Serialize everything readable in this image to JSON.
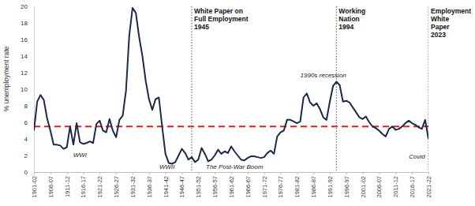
{
  "chart_data": {
    "type": "line",
    "y_label": "% unemployment rate",
    "color": "#1b2a47",
    "x": [
      1901,
      1902,
      1903,
      1904,
      1905,
      1906,
      1907,
      1908,
      1909,
      1910,
      1911,
      1912,
      1913,
      1914,
      1915,
      1916,
      1917,
      1918,
      1919,
      1920,
      1921,
      1922,
      1923,
      1924,
      1925,
      1926,
      1927,
      1928,
      1929,
      1930,
      1931,
      1932,
      1933,
      1934,
      1935,
      1936,
      1937,
      1938,
      1939,
      1940,
      1941,
      1942,
      1943,
      1944,
      1945,
      1946,
      1947,
      1948,
      1949,
      1950,
      1951,
      1952,
      1953,
      1954,
      1955,
      1956,
      1957,
      1958,
      1959,
      1960,
      1961,
      1962,
      1963,
      1964,
      1965,
      1966,
      1967,
      1968,
      1969,
      1970,
      1971,
      1972,
      1973,
      1974,
      1975,
      1976,
      1977,
      1978,
      1979,
      1980,
      1981,
      1982,
      1983,
      1984,
      1985,
      1986,
      1987,
      1988,
      1989,
      1990,
      1991,
      1992,
      1993,
      1994,
      1995,
      1996,
      1997,
      1998,
      1999,
      2000,
      2001,
      2002,
      2003,
      2004,
      2005,
      2006,
      2007,
      2008,
      2009,
      2010,
      2011,
      2012,
      2013,
      2014,
      2015,
      2016,
      2017,
      2018,
      2019,
      2020,
      2021
    ],
    "values": [
      5.0,
      8.5,
      9.3,
      8.7,
      6.5,
      5.0,
      3.3,
      3.3,
      3.2,
      2.8,
      3.0,
      5.5,
      3.3,
      5.9,
      3.6,
      3.4,
      3.5,
      3.7,
      3.5,
      5.8,
      6.2,
      5.0,
      4.8,
      6.4,
      5.0,
      4.2,
      6.3,
      6.8,
      9.8,
      16.5,
      19.8,
      19.2,
      16.3,
      14.0,
      11.0,
      8.8,
      7.5,
      8.8,
      9.0,
      5.5,
      2.2,
      1.1,
      1.0,
      1.2,
      2.0,
      2.8,
      2.3,
      1.5,
      1.8,
      1.2,
      1.5,
      2.9,
      2.2,
      1.3,
      1.5,
      2.0,
      2.7,
      2.2,
      2.5,
      2.3,
      3.1,
      2.5,
      2.0,
      1.5,
      1.4,
      1.7,
      1.9,
      1.9,
      1.8,
      1.7,
      1.8,
      2.3,
      2.6,
      2.2,
      4.3,
      4.8,
      5.0,
      6.3,
      6.3,
      6.1,
      5.9,
      6.1,
      9.0,
      9.5,
      8.4,
      8.0,
      8.3,
      7.6,
      6.6,
      6.3,
      8.5,
      10.4,
      10.9,
      10.5,
      8.5,
      8.6,
      8.4,
      7.8,
      7.2,
      6.6,
      6.4,
      6.7,
      6.0,
      5.5,
      5.3,
      5.0,
      4.6,
      4.3,
      5.2,
      5.5,
      5.1,
      5.2,
      5.5,
      5.9,
      6.2,
      5.9,
      5.7,
      5.4,
      5.2,
      6.3,
      4.0
    ],
    "xlim": [
      1901,
      2021
    ],
    "xticks": [
      {
        "value": 1901,
        "label": "1901-02"
      },
      {
        "value": 1906,
        "label": "1906-07"
      },
      {
        "value": 1911,
        "label": "1911-12"
      },
      {
        "value": 1916,
        "label": "1916-17"
      },
      {
        "value": 1921,
        "label": "1921-22"
      },
      {
        "value": 1926,
        "label": "1926-27"
      },
      {
        "value": 1931,
        "label": "1931-32"
      },
      {
        "value": 1936,
        "label": "1936-37"
      },
      {
        "value": 1941,
        "label": "1941-42"
      },
      {
        "value": 1946,
        "label": "1946-47"
      },
      {
        "value": 1951,
        "label": "1951-52"
      },
      {
        "value": 1956,
        "label": "1956-57"
      },
      {
        "value": 1961,
        "label": "1961-62"
      },
      {
        "value": 1966,
        "label": "1966-67"
      },
      {
        "value": 1971,
        "label": "1971-72"
      },
      {
        "value": 1976,
        "label": "1976-77"
      },
      {
        "value": 1981,
        "label": "1981-82"
      },
      {
        "value": 1986,
        "label": "1986-87"
      },
      {
        "value": 1991,
        "label": "1991-92"
      },
      {
        "value": 1996,
        "label": "1996-97"
      },
      {
        "value": 2001,
        "label": "2001-02"
      },
      {
        "value": 2006,
        "label": "2006-07"
      },
      {
        "value": 2011,
        "label": "2011-12"
      },
      {
        "value": 2016,
        "label": "2016-17"
      },
      {
        "value": 2021,
        "label": "2021-22"
      }
    ],
    "ylim": [
      0,
      20
    ],
    "yticks": [
      0,
      2,
      4,
      6,
      8,
      10,
      12,
      14,
      16,
      18,
      20
    ],
    "grid": false,
    "reference_lines": [
      {
        "value": 5.5,
        "color": "#e3201b",
        "line_style": "dashed"
      }
    ],
    "events": [
      {
        "x": 1949,
        "label": [
          "White Paper on",
          "Full Employment",
          "1945"
        ]
      },
      {
        "x": 1993,
        "label": [
          "Working",
          "Nation",
          "1994"
        ]
      },
      {
        "x": 2021,
        "label": [
          "Employment",
          "White",
          "Paper",
          "2023"
        ]
      }
    ],
    "annotations": [
      {
        "text": "WWI",
        "x": 1915,
        "y": 2.0
      },
      {
        "text": "WWII",
        "x": 1941.5,
        "y": 0.6
      },
      {
        "text": "The Post-War Boom",
        "x": 1962,
        "y": 0.6
      },
      {
        "text": "1990s recession",
        "x": 1989,
        "y": 11.6
      },
      {
        "text": "Covid",
        "x": 2017.5,
        "y": 1.8
      }
    ]
  }
}
